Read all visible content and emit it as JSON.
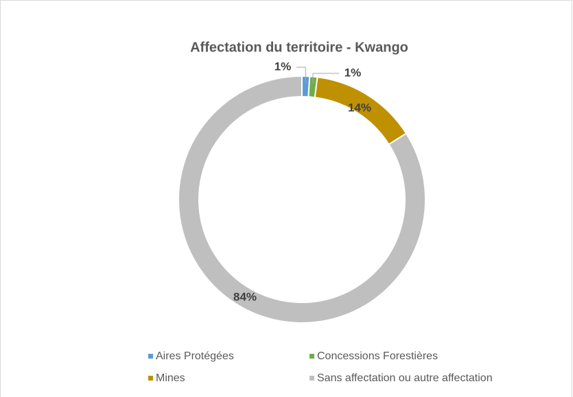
{
  "chart_data": {
    "type": "donut",
    "title": "Affectation du territoire - Kwango",
    "categories": [
      "Aires Protégées",
      "Concessions Forestières",
      "Mines",
      "Sans affectation ou autre affectation"
    ],
    "values": [
      1,
      1,
      14,
      84
    ],
    "value_labels": [
      "1%",
      "1%",
      "14%",
      "84%"
    ],
    "colors": [
      "#5b9bd5",
      "#70ad47",
      "#bf9000",
      "#bfbfbf"
    ],
    "legend": "bottom"
  }
}
